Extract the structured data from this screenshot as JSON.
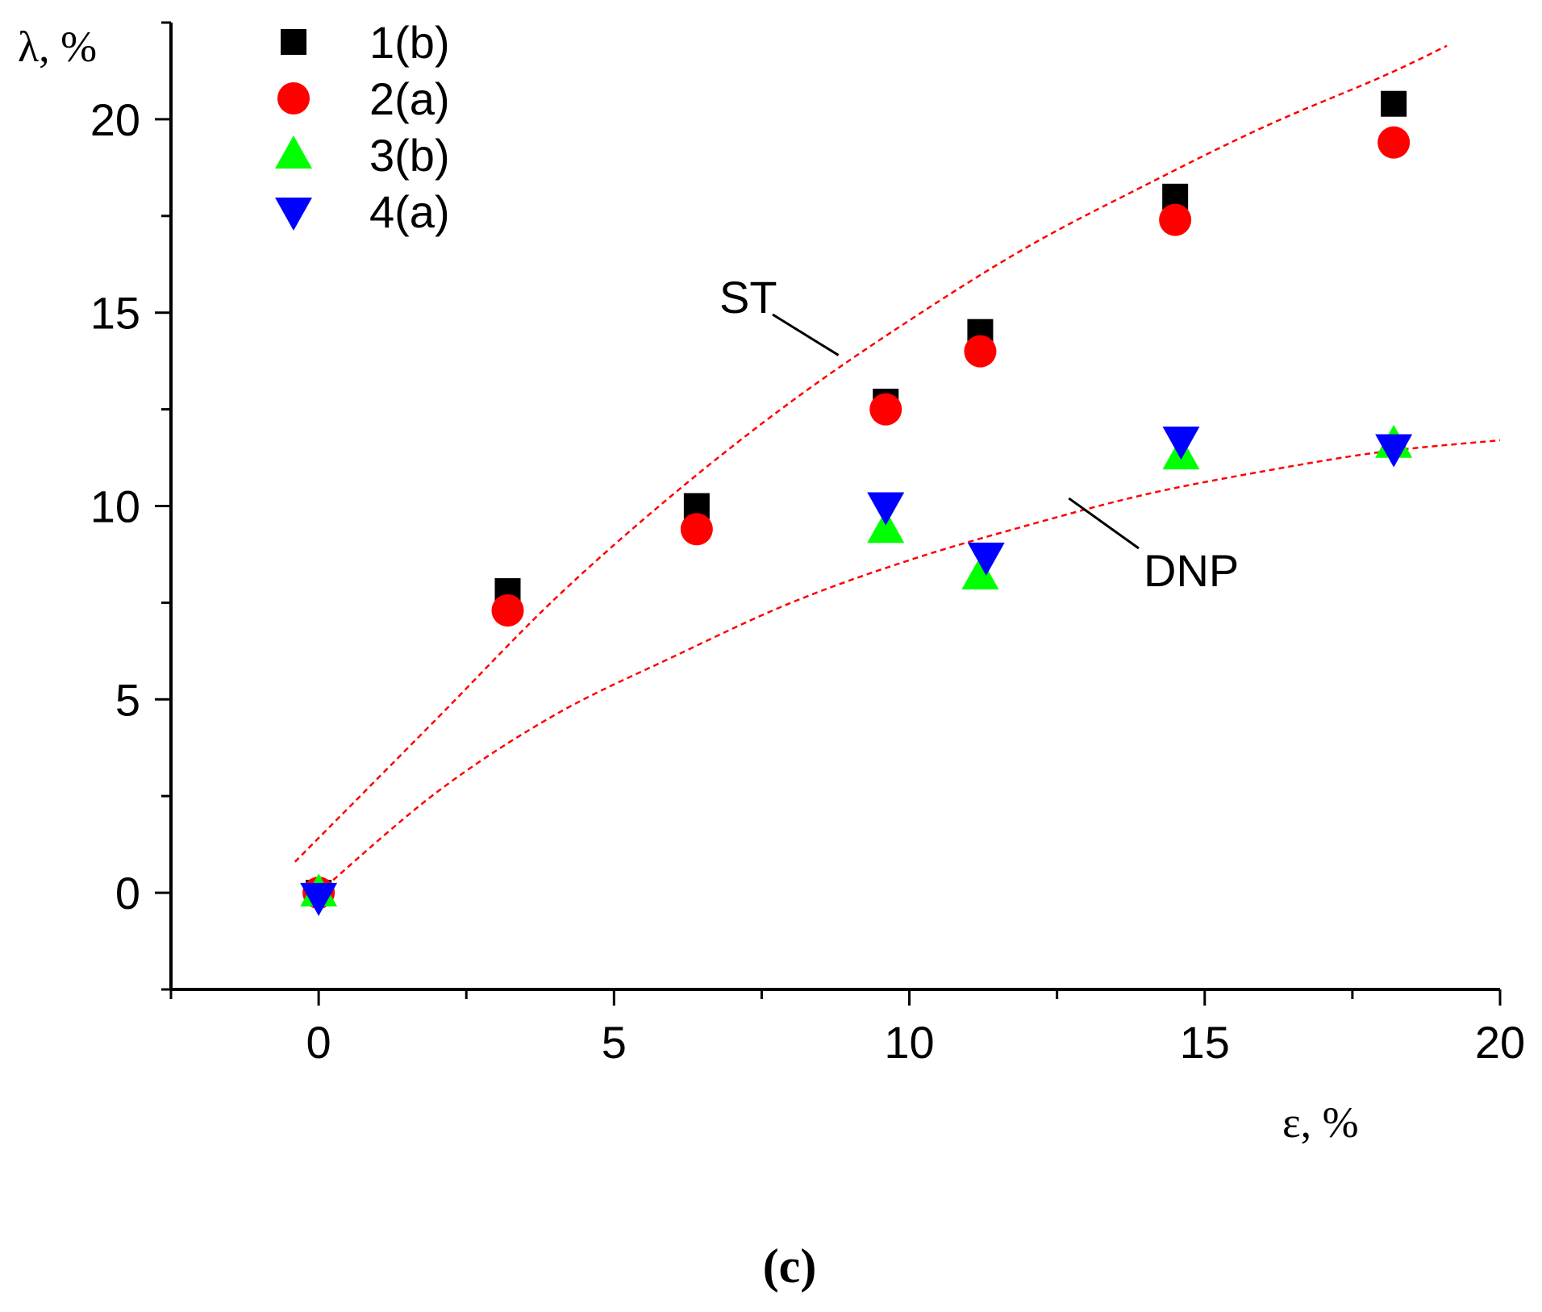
{
  "chart_data": {
    "type": "scatter",
    "xlabel": "ε, %",
    "ylabel": "λ, %",
    "panel_label": "(c)",
    "xlim": [
      -2.5,
      20
    ],
    "ylim": [
      -2.5,
      22.5
    ],
    "x_ticks": [
      0,
      5,
      10,
      15,
      20
    ],
    "y_ticks": [
      0,
      5,
      10,
      15,
      20
    ],
    "grid": false,
    "legend_position": "top-left",
    "series": [
      {
        "name": "1(b)",
        "marker": "square",
        "color": "#000000",
        "x": [
          0,
          3.2,
          6.4,
          9.6,
          11.2,
          14.5,
          18.2
        ],
        "y": [
          0,
          7.8,
          10.0,
          12.7,
          14.5,
          18.0,
          20.4
        ]
      },
      {
        "name": "2(a)",
        "marker": "circle",
        "color": "#ff0000",
        "x": [
          0,
          3.2,
          6.4,
          9.6,
          11.2,
          14.5,
          18.2
        ],
        "y": [
          0,
          7.3,
          9.4,
          12.5,
          14.0,
          17.4,
          19.4
        ]
      },
      {
        "name": "3(b)",
        "marker": "triangle-up",
        "color": "#00ff00",
        "x": [
          0,
          9.6,
          11.2,
          14.6,
          18.2
        ],
        "y": [
          0,
          9.4,
          8.2,
          11.3,
          11.6
        ]
      },
      {
        "name": "4(a)",
        "marker": "triangle-down",
        "color": "#0000ff",
        "x": [
          0,
          9.6,
          11.3,
          14.6,
          18.2
        ],
        "y": [
          -0.1,
          10.0,
          8.7,
          11.7,
          11.5
        ]
      }
    ],
    "curves": [
      {
        "name": "ST",
        "color": "#ff0000",
        "style": "dashed",
        "x": [
          -0.4,
          2,
          4,
          6,
          8,
          10,
          12,
          14,
          16,
          18,
          19.1
        ],
        "y": [
          0.8,
          4.5,
          7.6,
          10.3,
          12.7,
          14.8,
          16.7,
          18.3,
          19.8,
          21.1,
          21.9
        ]
      },
      {
        "name": "DNP",
        "color": "#ff0000",
        "style": "dashed",
        "x": [
          0,
          2,
          4,
          6,
          8,
          10,
          12,
          14,
          16,
          18,
          20
        ],
        "y": [
          0,
          2.6,
          4.6,
          6.1,
          7.5,
          8.6,
          9.5,
          10.3,
          10.9,
          11.4,
          11.7
        ]
      }
    ],
    "annotations": [
      {
        "text": "ST",
        "target_curve": "ST"
      },
      {
        "text": "DNP",
        "target_curve": "DNP"
      }
    ]
  }
}
